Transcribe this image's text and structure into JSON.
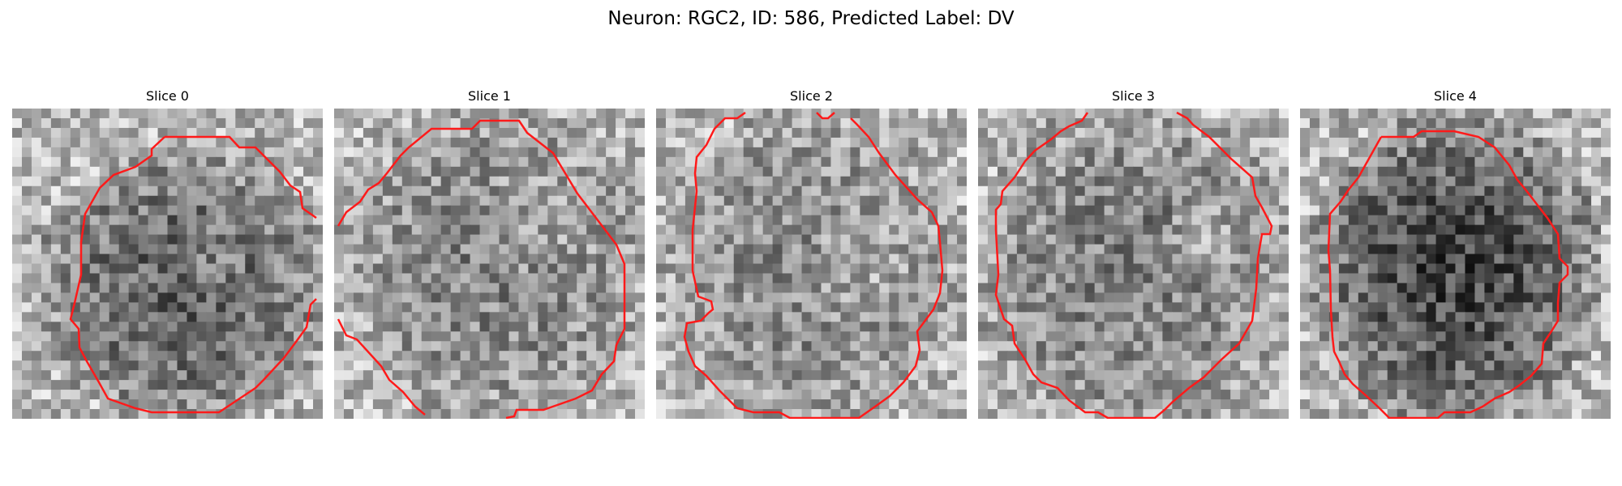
{
  "figure": {
    "title": "Neuron: RGC2, ID: 586, Predicted Label: DV"
  },
  "panels": [
    {
      "title": "Slice 0"
    },
    {
      "title": "Slice 1"
    },
    {
      "title": "Slice 2"
    },
    {
      "title": "Slice 3"
    },
    {
      "title": "Slice 4"
    }
  ],
  "colors": {
    "contour": "#ff1a1a",
    "background": "#ffffff"
  }
}
